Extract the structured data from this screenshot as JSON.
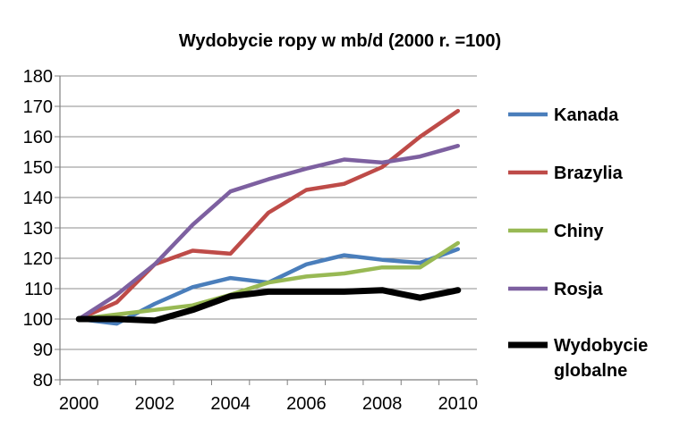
{
  "chart_data": {
    "type": "line",
    "title": "Wydobycie ropy w mb/d (2000 r. =100)",
    "xlabel": "",
    "ylabel": "",
    "x": [
      2000,
      2001,
      2002,
      2003,
      2004,
      2005,
      2006,
      2007,
      2008,
      2009,
      2010
    ],
    "xlim": [
      1999.5,
      2010.5
    ],
    "ylim": [
      80,
      180
    ],
    "x_ticks": [
      "2000",
      "2002",
      "2004",
      "2006",
      "2008",
      "2010"
    ],
    "y_ticks": [
      "80",
      "90",
      "100",
      "110",
      "120",
      "130",
      "140",
      "150",
      "160",
      "170",
      "180"
    ],
    "grid": "horizontal",
    "legend_position": "right",
    "series": [
      {
        "name": "Kanada",
        "color": "#4a7ebb",
        "values": [
          100,
          98.5,
          105,
          110.5,
          113.5,
          112,
          118,
          121,
          119.5,
          118.5,
          123
        ]
      },
      {
        "name": "Brazylia",
        "color": "#be4b48",
        "values": [
          100,
          105.5,
          118,
          122.5,
          121.5,
          135,
          142.5,
          144.5,
          150,
          160,
          168.5
        ]
      },
      {
        "name": "Chiny",
        "color": "#98b954",
        "values": [
          100,
          101.5,
          103,
          104.5,
          108,
          112,
          114,
          115,
          117,
          117,
          125
        ]
      },
      {
        "name": "Rosja",
        "color": "#7d60a0",
        "values": [
          100,
          108,
          118,
          131,
          142,
          146,
          149.5,
          152.5,
          151.5,
          153.5,
          157
        ]
      },
      {
        "name": "Wydobycie globalne",
        "name_lines": [
          "Wydobycie",
          "globalne"
        ],
        "color": "#000000",
        "values": [
          100,
          100,
          99.5,
          103,
          107.5,
          109,
          109,
          109,
          109.5,
          107,
          109.5
        ]
      }
    ]
  }
}
